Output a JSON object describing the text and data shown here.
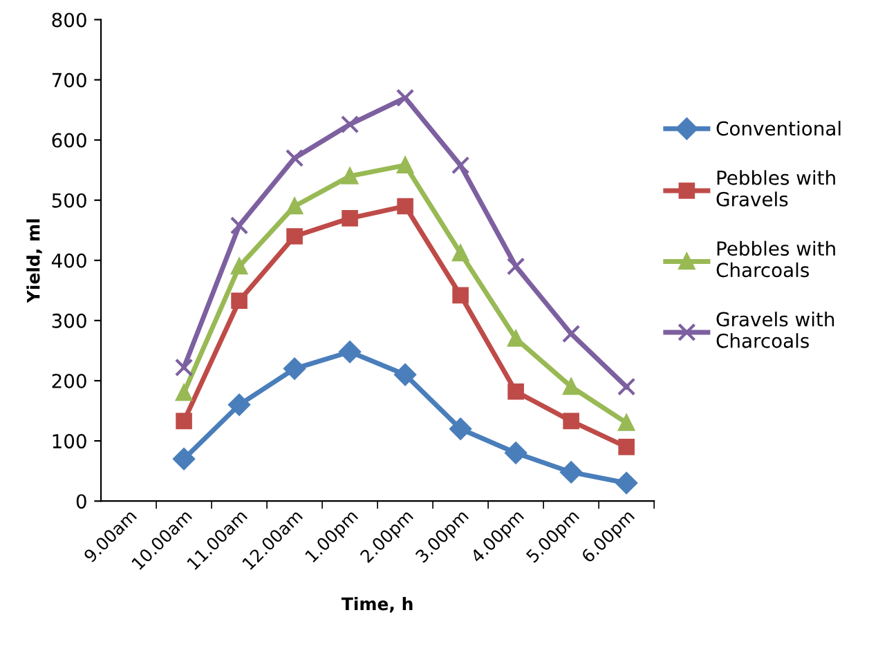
{
  "chart_data": {
    "type": "line",
    "xlabel": "Time, h",
    "ylabel": "Yield, ml",
    "categories": [
      "9.00am",
      "10.00am",
      "11.00am",
      "12.00am",
      "1.00pm",
      "2.00pm",
      "3.00pm",
      "4.00pm",
      "5.00pm",
      "6.00pm"
    ],
    "series": [
      {
        "name": "Conventional",
        "color": "#4a7ebb",
        "marker": "diamond",
        "values": [
          null,
          70,
          160,
          220,
          248,
          210,
          120,
          80,
          48,
          30
        ]
      },
      {
        "name": "Pebbles with\nGravels",
        "color": "#be4b48",
        "marker": "square",
        "values": [
          null,
          133,
          333,
          440,
          470,
          490,
          342,
          182,
          133,
          90
        ]
      },
      {
        "name": "Pebbles with\nCharcoals",
        "color": "#98b954",
        "marker": "triangle",
        "values": [
          null,
          180,
          390,
          490,
          540,
          558,
          412,
          270,
          190,
          130
        ]
      },
      {
        "name": "Gravels with\nCharcoals",
        "color": "#7d60a0",
        "marker": "cross",
        "values": [
          null,
          222,
          458,
          570,
          626,
          670,
          558,
          390,
          278,
          190
        ]
      }
    ],
    "ylim": [
      0,
      800
    ],
    "yticks": [
      0,
      100,
      200,
      300,
      400,
      500,
      600,
      700,
      800
    ],
    "grid": false,
    "legend": "right",
    "line_style": "solid"
  }
}
